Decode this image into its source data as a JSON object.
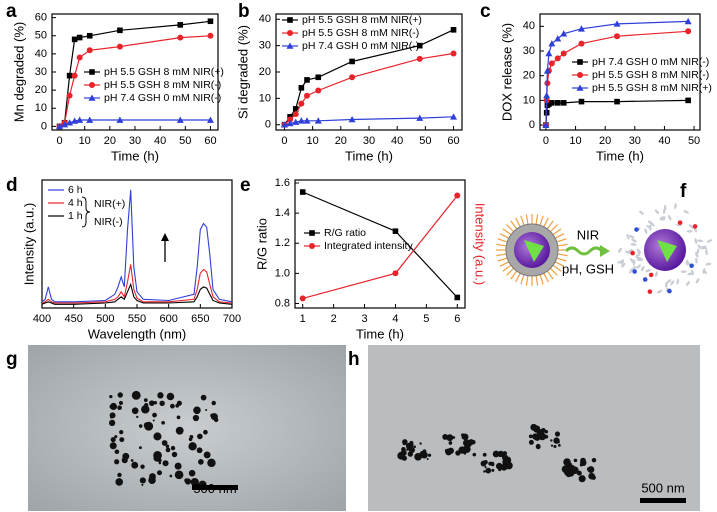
{
  "panel_labels": [
    "a",
    "b",
    "c",
    "d",
    "e",
    "f",
    "g",
    "h"
  ],
  "schematic": {
    "label_top": "NIR",
    "label_bottom": "pH, GSH"
  },
  "micrographs": [
    {
      "scale_bar": "500 nm"
    },
    {
      "scale_bar": "500 nm"
    }
  ],
  "chart_data": [
    {
      "type": "line",
      "xlabel": "Time (h)",
      "ylabel": "Mn degraded (%)",
      "x": [
        0,
        2,
        4,
        6,
        8,
        12,
        24,
        48,
        60
      ],
      "xlim": [
        -3,
        63
      ],
      "xticks": [
        0,
        10,
        20,
        30,
        40,
        50,
        60
      ],
      "ylim": [
        -2,
        62
      ],
      "yticks": [
        0,
        10,
        20,
        30,
        40,
        50,
        60
      ],
      "legend": "lower right",
      "series": [
        {
          "name": "pH 5.5 GSH 8 mM NIR(+)",
          "color": "#000000",
          "marker": "square",
          "values": [
            0,
            2,
            28,
            48,
            49,
            50,
            53,
            56,
            58
          ]
        },
        {
          "name": "pH 5.5 GSH 8 mM NIR(-)",
          "color": "#e8232a",
          "marker": "circle",
          "values": [
            0,
            2,
            17,
            28,
            38,
            42,
            44,
            49,
            50
          ]
        },
        {
          "name": "pH 7.4 GSH 0 mM NIR(-)",
          "color": "#2f3fd8",
          "marker": "triangle",
          "values": [
            0,
            1,
            2,
            3,
            3.5,
            3.5,
            3.5,
            3.5,
            3.5
          ]
        }
      ]
    },
    {
      "type": "line",
      "xlabel": "Time (h)",
      "ylabel": "Si degraded (%)",
      "x": [
        0,
        2,
        4,
        6,
        8,
        12,
        24,
        48,
        60
      ],
      "xlim": [
        -3,
        63
      ],
      "xticks": [
        0,
        10,
        20,
        30,
        40,
        50,
        60
      ],
      "ylim": [
        -2,
        42
      ],
      "yticks": [
        0,
        10,
        20,
        30,
        40
      ],
      "legend": "upper left",
      "series": [
        {
          "name": "pH 5.5 GSH 8 mM NIR(+)",
          "color": "#000000",
          "marker": "square",
          "values": [
            0,
            3,
            6,
            14,
            17,
            18,
            24,
            30,
            36
          ]
        },
        {
          "name": "pH 5.5 GSH 8 mM NIR(-)",
          "color": "#e8232a",
          "marker": "circle",
          "values": [
            0,
            2,
            4,
            8,
            11,
            13,
            18,
            25,
            27
          ]
        },
        {
          "name": "pH 7.4 GSH 0 mM NIR(-)",
          "color": "#2f3fd8",
          "marker": "triangle",
          "values": [
            0,
            0.5,
            1,
            1.5,
            1.5,
            1.5,
            2,
            2.5,
            3
          ]
        }
      ]
    },
    {
      "type": "line",
      "xlabel": "Time (h)",
      "ylabel": "DOX release (%)",
      "x": [
        0,
        0.25,
        0.5,
        1,
        2,
        4,
        6,
        12,
        24,
        48
      ],
      "xlim": [
        -2,
        52
      ],
      "xticks": [
        0,
        10,
        20,
        30,
        40,
        50
      ],
      "ylim": [
        -2,
        45
      ],
      "yticks": [
        0,
        10,
        20,
        30,
        40
      ],
      "legend": "center right",
      "series": [
        {
          "name": "pH 7.4 GSH 0 mM NIR(-)",
          "color": "#000000",
          "marker": "square",
          "values": [
            0,
            5,
            8,
            8.5,
            9,
            9,
            9,
            9.5,
            9.5,
            10
          ]
        },
        {
          "name": "pH 5.5 GSH 8 mM NIR(-)",
          "color": "#e8232a",
          "marker": "circle",
          "values": [
            0,
            10,
            17,
            22,
            25,
            27,
            29,
            33,
            36,
            38
          ]
        },
        {
          "name": "pH 5.5 GSH 8 mM NIR(+)",
          "color": "#2f3fd8",
          "marker": "triangle",
          "values": [
            0,
            12,
            22,
            29,
            33,
            35,
            37,
            39,
            41,
            42
          ]
        }
      ]
    },
    {
      "type": "line",
      "xlabel": "Wavelength (nm)",
      "ylabel": "Intensity (a.u.)",
      "x": [
        400,
        405,
        410,
        415,
        420,
        450,
        500,
        515,
        520,
        525,
        530,
        535,
        540,
        545,
        550,
        560,
        600,
        640,
        645,
        650,
        655,
        660,
        665,
        670,
        680,
        700
      ],
      "xlim": [
        400,
        700
      ],
      "xticks": [
        400,
        450,
        500,
        550,
        600,
        650,
        700
      ],
      "ylim": [
        -3,
        100
      ],
      "legend": "upper left",
      "annotations": [
        "NIR(+)",
        "NIR(-)"
      ],
      "series": [
        {
          "name": "6 h",
          "color": "#2f3fd8",
          "values": [
            2,
            4,
            14,
            4,
            2,
            2,
            3,
            8,
            14,
            22,
            14,
            60,
            92,
            30,
            10,
            4,
            3,
            8,
            30,
            60,
            65,
            62,
            40,
            12,
            4,
            2
          ]
        },
        {
          "name": "4 h",
          "color": "#e8232a",
          "values": [
            1,
            2,
            4,
            2,
            1,
            1,
            2,
            4,
            6,
            10,
            6,
            18,
            32,
            12,
            5,
            2,
            2,
            4,
            12,
            25,
            28,
            26,
            16,
            6,
            2,
            1
          ]
        },
        {
          "name": "1 h",
          "color": "#000000",
          "values": [
            0,
            1,
            2,
            1,
            0,
            0,
            1,
            2,
            4,
            6,
            4,
            10,
            16,
            6,
            3,
            1,
            1,
            2,
            6,
            12,
            14,
            13,
            8,
            3,
            1,
            0
          ]
        }
      ]
    },
    {
      "type": "line",
      "xlabel": "Time (h)",
      "ylabel": "R/G ratio",
      "y2label": "Intensity (a.u.)",
      "x": [
        1,
        4,
        6
      ],
      "xlim": [
        0.75,
        6.25
      ],
      "xticks": [
        1,
        2,
        3,
        4,
        5,
        6
      ],
      "ylim": [
        0.77,
        1.62
      ],
      "yticks": [
        0.8,
        {
          "value": 1,
          "label": "1.0"
        },
        1.2,
        1.4,
        1.6
      ],
      "y2lim": [
        -0.04,
        1.03
      ],
      "legend": "center left",
      "series": [
        {
          "name": "R/G ratio",
          "color": "#000000",
          "marker": "square",
          "values": [
            1.54,
            1.28,
            0.84
          ]
        },
        {
          "name": "Integrated intensity",
          "color": "#e8232a",
          "marker": "circle",
          "axis": "y2",
          "values": [
            0.04,
            0.25,
            0.9
          ]
        }
      ]
    }
  ]
}
